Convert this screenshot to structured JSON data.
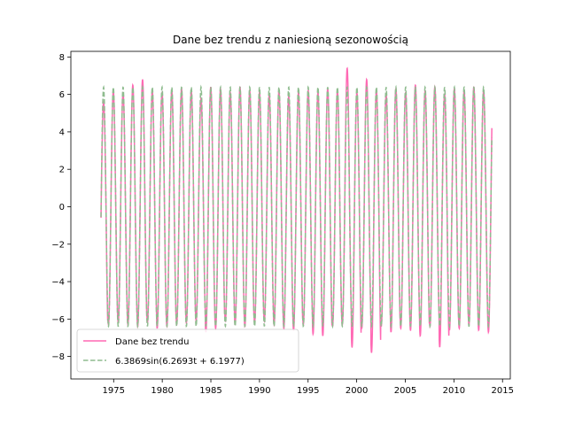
{
  "chart_data": {
    "type": "line",
    "title": "Dane bez trendu z naniesioną sezonowością",
    "xlabel": "",
    "ylabel": "",
    "xlim": [
      1970.6,
      2015.8
    ],
    "ylim": [
      -9.2,
      8.3
    ],
    "x_ticks": [
      1975,
      1980,
      1985,
      1990,
      1995,
      2000,
      2005,
      2010,
      2015
    ],
    "y_ticks": [
      -8,
      -6,
      -4,
      -2,
      0,
      2,
      4,
      6,
      8
    ],
    "x_tick_labels": [
      "1975",
      "1980",
      "1985",
      "1990",
      "1995",
      "2000",
      "2005",
      "2010",
      "2015"
    ],
    "y_tick_labels": [
      "−8",
      "−6",
      "−4",
      "−2",
      "0",
      "2",
      "4",
      "6",
      "8"
    ],
    "grid": false,
    "legend_position": "lower-left",
    "x_start": 1973.7,
    "x_end": 2013.9,
    "series": [
      {
        "name": "Dane bez trendu",
        "color": "#ff69b4",
        "style": "solid",
        "peak_values": [
          5.6,
          6.2,
          6.1,
          6.5,
          6.8,
          6.2,
          6.1,
          6.2,
          6.3,
          6.2,
          5.8,
          6.4,
          6.3,
          6.1,
          6.4,
          6.2,
          6.1,
          6.0,
          6.2,
          5.9,
          6.1,
          6.2,
          6.1,
          6.3,
          6.2,
          7.4,
          6.1,
          6.8,
          6.2,
          6.0,
          6.3,
          6.1,
          6.5,
          6.2,
          6.4,
          6.0,
          6.3,
          6.2,
          6.4,
          6.2,
          7.3,
          6.1,
          6.2,
          7.0,
          5.9,
          6.0
        ],
        "trough_values": [
          -6.9,
          -6.3,
          -6.2,
          -6.3,
          -6.4,
          -6.2,
          -6.5,
          -6.4,
          -6.3,
          -6.2,
          -6.1,
          -6.7,
          -6.5,
          -6.1,
          -6.3,
          -6.4,
          -6.2,
          -6.1,
          -6.3,
          -6.5,
          -6.6,
          -6.3,
          -6.8,
          -6.9,
          -6.4,
          -6.3,
          -7.5,
          -6.5,
          -7.8,
          -6.4,
          -6.7,
          -6.5,
          -6.6,
          -6.9,
          -6.4,
          -7.5,
          -6.6,
          -6.5,
          -6.3,
          -6.6,
          -6.7,
          -8.1,
          -6.2,
          -6.6,
          -6.2
        ]
      },
      {
        "name": "6.3869sin(6.2693t + 6.1977)",
        "color": "#8fbc8f",
        "style": "dashed",
        "amplitude": 6.3869,
        "omega": 6.2693,
        "phase": 6.1977
      }
    ]
  }
}
